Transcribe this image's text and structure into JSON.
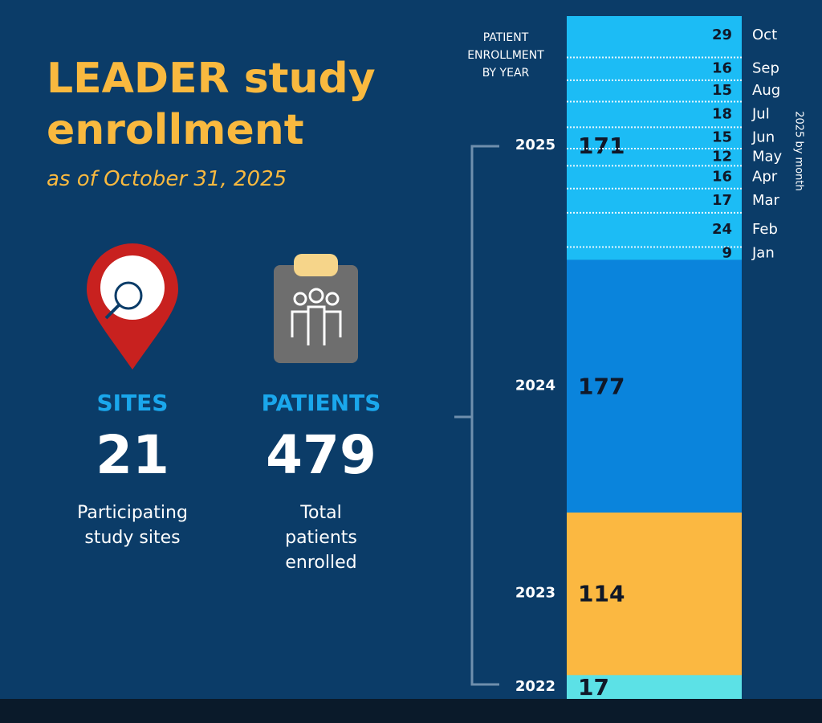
{
  "header": {
    "title": "LEADER study enrollment",
    "subtitle": "as of October 31, 2025"
  },
  "stats": [
    {
      "label": "SITES",
      "value": 21,
      "caption": "Participating study sites"
    },
    {
      "label": "PATIENTS",
      "value": 479,
      "caption": "Total patients enrolled"
    }
  ],
  "chart_data": {
    "type": "stacked-bar",
    "title": "PATIENT ENROLLMENT BY YEAR",
    "categories": [
      "2022",
      "2023",
      "2024",
      "2025"
    ],
    "values": [
      17,
      114,
      177,
      171
    ],
    "colors": [
      "#5ce1e6",
      "#fbb841",
      "#0a84dc",
      "#1cbcf5"
    ],
    "breakdown": {
      "label": "2025 by month",
      "categories": [
        "Jan",
        "Feb",
        "Mar",
        "Apr",
        "May",
        "Jun",
        "Jul",
        "Aug",
        "Sep",
        "Oct"
      ],
      "values": [
        9,
        24,
        17,
        16,
        12,
        15,
        18,
        15,
        16,
        29
      ]
    }
  }
}
